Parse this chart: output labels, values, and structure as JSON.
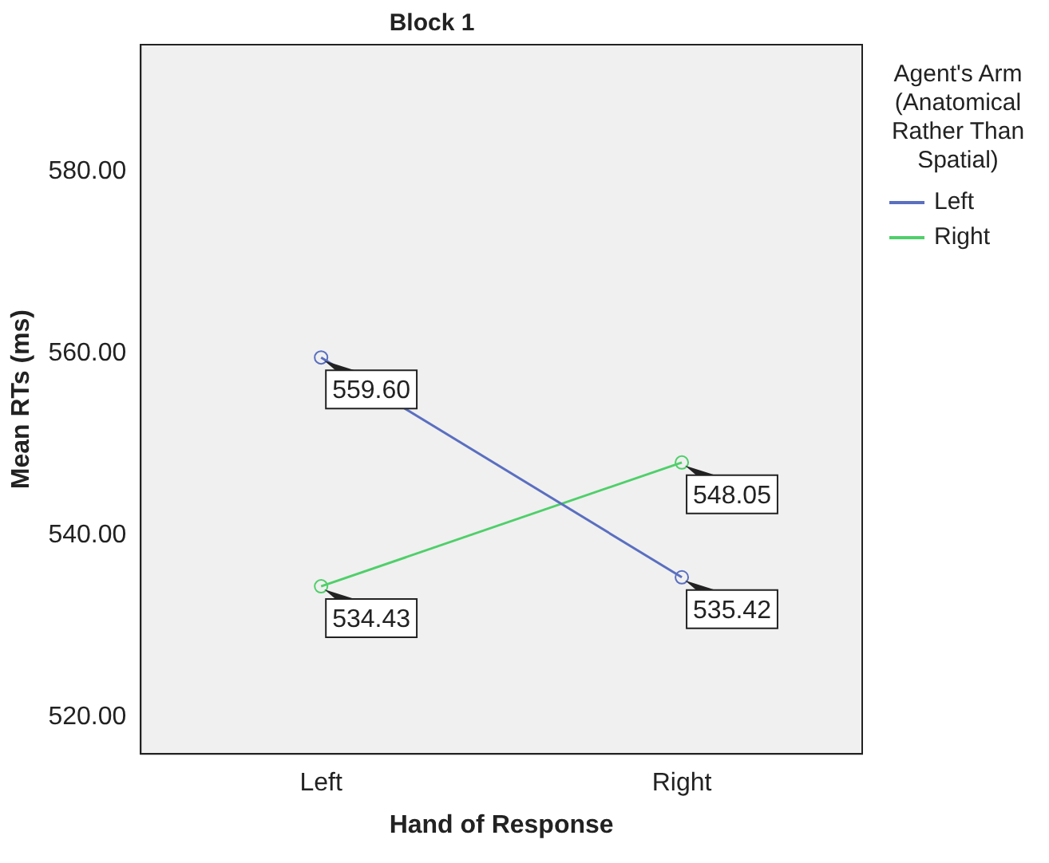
{
  "chart_data": {
    "type": "line",
    "title": "Block 1",
    "xlabel": "Hand of Response",
    "ylabel": "Mean RTs (ms)",
    "legend_title": "Agent's Arm (Anatomical Rather Than Spatial)",
    "categories": [
      "Left",
      "Right"
    ],
    "series": [
      {
        "name": "Left",
        "color": "#5a6fc0",
        "values": [
          559.6,
          535.42
        ],
        "value_labels": [
          "559.60",
          "535.42"
        ]
      },
      {
        "name": "Right",
        "color": "#4fcf6a",
        "values": [
          534.43,
          548.05
        ],
        "value_labels": [
          "534.43",
          "548.05"
        ]
      }
    ],
    "ylim": [
      516,
      594
    ],
    "yticks": [
      {
        "value": 520,
        "label": "520.00"
      },
      {
        "value": 540,
        "label": "540.00"
      },
      {
        "value": 560,
        "label": "560.00"
      },
      {
        "value": 580,
        "label": "580.00"
      }
    ],
    "grid": false,
    "legend": "right",
    "marker": "circle",
    "line_style": "solid"
  }
}
